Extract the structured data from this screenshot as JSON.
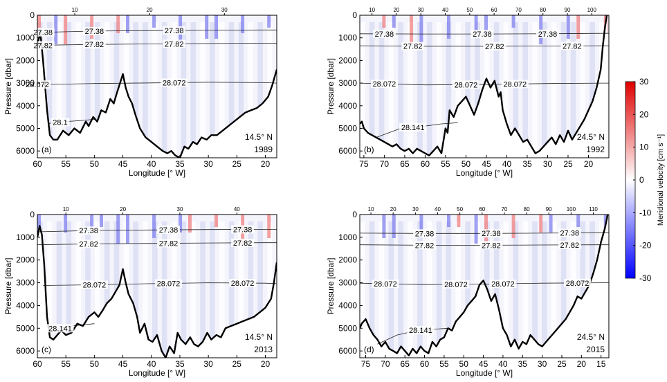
{
  "chart_data": [
    {
      "type": "heatmap",
      "panel": "(a)",
      "latitude": "14.5° N",
      "year": "1989",
      "xlabel": "Longitude [° W]",
      "ylabel": "Pressure [dbar]",
      "xlim": [
        60,
        18
      ],
      "ylim": [
        6300,
        0
      ],
      "xticks": [
        60,
        55,
        50,
        45,
        40,
        35,
        30,
        25,
        20
      ],
      "yticks": [
        0,
        1000,
        2000,
        3000,
        4000,
        5000,
        6000
      ],
      "stations_shown": [
        10,
        20,
        30
      ],
      "isopycnal_labels": [
        "27.38",
        "27.82",
        "28.072",
        "28.1"
      ],
      "isopycnals": [
        {
          "label": "27.38",
          "x": [
            60,
            50,
            40,
            30,
            20,
            18
          ],
          "y": [
            760,
            700,
            680,
            660,
            650,
            650
          ]
        },
        {
          "label": "27.82",
          "x": [
            60,
            50,
            40,
            30,
            20,
            18
          ],
          "y": [
            1330,
            1290,
            1270,
            1250,
            1240,
            1240
          ]
        },
        {
          "label": "28.072",
          "x": [
            59,
            50,
            40,
            30,
            20,
            18
          ],
          "y": [
            3060,
            3020,
            2990,
            2960,
            2980,
            3000
          ]
        },
        {
          "label": "28.1",
          "x": [
            58,
            55,
            52,
            50
          ],
          "y": [
            4780,
            4700,
            4650,
            4600
          ]
        }
      ],
      "bathymetry": {
        "x": [
          60,
          59.5,
          59,
          58.3,
          57.8,
          57.2,
          56.5,
          55.5,
          54.5,
          53.5,
          52.5,
          51.5,
          51,
          50.2,
          49.5,
          48.8,
          48,
          47.2,
          46.6,
          46,
          45.5,
          45,
          44.5,
          44,
          43.4,
          42.8,
          42,
          41,
          40,
          39,
          38,
          37.2,
          36.5,
          35.8,
          35,
          34.2,
          33.5,
          32.7,
          32,
          31.2,
          30.3,
          29.5,
          28.5,
          27.5,
          26.5,
          25.5,
          24.5,
          23.5,
          22.5,
          21.5,
          20.5,
          19.5,
          18.8,
          18
        ],
        "y": [
          1400,
          700,
          2000,
          4200,
          5300,
          5500,
          5500,
          5100,
          5300,
          5000,
          5200,
          4700,
          4900,
          4500,
          4700,
          4200,
          4300,
          3700,
          3900,
          3400,
          3000,
          2600,
          3200,
          3600,
          3900,
          4400,
          5000,
          5400,
          5600,
          5800,
          6000,
          6100,
          6000,
          6200,
          6300,
          5800,
          5900,
          5600,
          5700,
          5400,
          5500,
          5300,
          5300,
          5100,
          4900,
          4700,
          4500,
          4300,
          4200,
          4100,
          3900,
          3600,
          3100,
          2400
        ]
      },
      "colorbar": {
        "label": "Meridional velocity [cm s⁻¹]",
        "min": -30,
        "max": 30,
        "ticks": [
          30,
          20,
          10,
          0,
          -10,
          -20,
          -30
        ]
      }
    },
    {
      "type": "heatmap",
      "panel": "(b)",
      "latitude": "24.5° N",
      "year": "1992",
      "xlabel": "Longitude [° W]",
      "ylabel": "Pressure [dbar]",
      "xlim": [
        76,
        15
      ],
      "ylim": [
        6300,
        0
      ],
      "xticks": [
        75,
        70,
        65,
        60,
        55,
        50,
        45,
        40,
        35,
        30,
        25,
        20
      ],
      "yticks": [
        0,
        1000,
        2000,
        3000,
        4000,
        5000,
        6000
      ],
      "stations_shown": [
        10,
        20,
        30,
        40,
        50,
        60,
        70,
        80,
        90,
        100
      ],
      "isopycnal_labels": [
        "27.38",
        "27.82",
        "28.072",
        "28.141"
      ],
      "isopycnals": [
        {
          "label": "27.38",
          "x": [
            76,
            60,
            45,
            30,
            17,
            15
          ],
          "y": [
            820,
            830,
            830,
            820,
            800,
            800
          ]
        },
        {
          "label": "27.82",
          "x": [
            76,
            60,
            45,
            30,
            17,
            15
          ],
          "y": [
            1350,
            1370,
            1370,
            1360,
            1350,
            1350
          ]
        },
        {
          "label": "28.072",
          "x": [
            76,
            60,
            45,
            30,
            17,
            15
          ],
          "y": [
            3000,
            3080,
            3060,
            3020,
            3000,
            3000
          ]
        },
        {
          "label": "28.141",
          "x": [
            72,
            66,
            60,
            56,
            52
          ],
          "y": [
            5400,
            5000,
            4900,
            4800,
            4750
          ]
        }
      ],
      "bathymetry": {
        "x": [
          76,
          75.5,
          75,
          74,
          73,
          72,
          71,
          70,
          69,
          68,
          67,
          66,
          65,
          64,
          63,
          62,
          61,
          60,
          59,
          58,
          57,
          56,
          55,
          54.5,
          54,
          53,
          52,
          51,
          50,
          49,
          48,
          47,
          46,
          45,
          44,
          43,
          42,
          41.5,
          41,
          40,
          39,
          38,
          37,
          36,
          35,
          34,
          33,
          32,
          31,
          30,
          29,
          28,
          27,
          26,
          25,
          24,
          23,
          22,
          21,
          20,
          19,
          18,
          17,
          16.5,
          16,
          15.5
        ],
        "y": [
          4800,
          4700,
          5000,
          5200,
          5300,
          5400,
          5500,
          5600,
          5700,
          5800,
          5700,
          5900,
          6000,
          5900,
          6100,
          5900,
          6000,
          6100,
          6200,
          6000,
          5800,
          6100,
          5000,
          5200,
          4200,
          4500,
          4000,
          3800,
          3600,
          4000,
          4400,
          3900,
          3300,
          2800,
          3200,
          2900,
          3600,
          3400,
          4200,
          4800,
          5300,
          5000,
          5300,
          5600,
          5500,
          5800,
          6100,
          6000,
          5800,
          5600,
          5400,
          5700,
          5300,
          5600,
          5100,
          5500,
          5200,
          4900,
          4600,
          4200,
          3800,
          3200,
          2400,
          1400,
          600,
          0
        ]
      },
      "colorbar": {
        "label": "Meridional velocity [cm s⁻¹]",
        "min": -30,
        "max": 30,
        "ticks": [
          30,
          20,
          10,
          0,
          -10,
          -20,
          -30
        ]
      }
    },
    {
      "type": "heatmap",
      "panel": "(c)",
      "latitude": "14.5° N",
      "year": "2013",
      "xlabel": "Longitude [° W]",
      "ylabel": "Pressure [dbar]",
      "xlim": [
        60,
        18
      ],
      "ylim": [
        6300,
        0
      ],
      "xticks": [
        60,
        55,
        50,
        45,
        40,
        35,
        30,
        25,
        20
      ],
      "yticks": [
        0,
        1000,
        2000,
        3000,
        4000,
        5000,
        6000
      ],
      "stations_shown": [
        10,
        20,
        30,
        40
      ],
      "isopycnal_labels": [
        "27.38",
        "27.82",
        "28.072",
        "28.141"
      ],
      "isopycnals": [
        {
          "label": "27.38",
          "x": [
            60,
            50,
            40,
            30,
            20,
            18
          ],
          "y": [
            760,
            700,
            680,
            660,
            650,
            650
          ]
        },
        {
          "label": "27.82",
          "x": [
            60,
            50,
            40,
            30,
            20,
            18
          ],
          "y": [
            1330,
            1290,
            1270,
            1250,
            1240,
            1240
          ]
        },
        {
          "label": "28.072",
          "x": [
            59,
            50,
            40,
            30,
            20,
            18
          ],
          "y": [
            3120,
            3090,
            3040,
            3000,
            3020,
            3040
          ]
        },
        {
          "label": "28.141",
          "x": [
            58,
            56,
            54,
            52,
            50
          ],
          "y": [
            5200,
            5000,
            4900,
            4850,
            4800
          ]
        }
      ],
      "bathymetry": {
        "x": [
          60,
          59.6,
          59.2,
          58.8,
          58.3,
          57.8,
          57.2,
          56.5,
          55.8,
          55,
          54,
          53,
          52,
          51,
          50,
          49.3,
          48.5,
          47.8,
          47,
          46.3,
          45.6,
          45,
          44.5,
          44,
          43.2,
          42.5,
          42,
          41.2,
          40.5,
          39.8,
          39,
          38.2,
          37.5,
          36.8,
          36,
          35.4,
          34.8,
          34,
          33.2,
          32.5,
          31.8,
          31,
          30.2,
          29.5,
          28.6,
          27.8,
          27,
          26,
          25,
          24,
          23,
          22,
          21,
          20,
          19,
          18.5,
          18
        ],
        "y": [
          1000,
          500,
          900,
          2200,
          4500,
          5400,
          5500,
          5300,
          5100,
          5300,
          5200,
          4800,
          4900,
          4500,
          4300,
          4500,
          4200,
          3900,
          3700,
          3400,
          3100,
          2400,
          3000,
          3500,
          3900,
          4500,
          5200,
          4800,
          5500,
          5600,
          5300,
          6000,
          6300,
          5800,
          6100,
          5200,
          5500,
          5700,
          5400,
          5700,
          5800,
          5600,
          5200,
          5500,
          5300,
          5400,
          5000,
          4900,
          4800,
          4700,
          4600,
          4500,
          4300,
          4100,
          3700,
          3000,
          2100
        ]
      },
      "colorbar": {
        "label": "Meridional velocity [cm s⁻¹]",
        "min": -30,
        "max": 30,
        "ticks": [
          30,
          20,
          10,
          0,
          -10,
          -20,
          -30
        ]
      }
    },
    {
      "type": "heatmap",
      "panel": "(d)",
      "latitude": "24.5° N",
      "year": "2015",
      "xlabel": "Longitude [° W]",
      "ylabel": "Pressure [dbar]",
      "xlim": [
        76.5,
        13
      ],
      "ylim": [
        6300,
        0
      ],
      "xticks": [
        75,
        70,
        65,
        60,
        55,
        50,
        45,
        40,
        35,
        30,
        25,
        20,
        15
      ],
      "yticks": [
        0,
        1000,
        2000,
        3000,
        4000,
        5000,
        6000
      ],
      "stations_shown": [
        10,
        20,
        30,
        40,
        50,
        60,
        70,
        80,
        90,
        100,
        110
      ],
      "isopycnal_labels": [
        "27.38",
        "27.82",
        "28.072",
        "28.141"
      ],
      "isopycnals": [
        {
          "label": "27.38",
          "x": [
            76.5,
            60,
            45,
            30,
            15,
            13
          ],
          "y": [
            820,
            830,
            830,
            820,
            800,
            800
          ]
        },
        {
          "label": "27.82",
          "x": [
            76.5,
            60,
            45,
            30,
            15,
            13
          ],
          "y": [
            1330,
            1350,
            1350,
            1340,
            1330,
            1330
          ]
        },
        {
          "label": "28.072",
          "x": [
            76.5,
            60,
            45,
            30,
            15,
            13
          ],
          "y": [
            3020,
            3080,
            3060,
            3020,
            3000,
            3000
          ]
        },
        {
          "label": "28.141",
          "x": [
            72,
            67,
            62,
            58,
            54
          ],
          "y": [
            5700,
            5300,
            5100,
            5050,
            5000
          ]
        }
      ],
      "bathymetry": {
        "x": [
          76.5,
          76,
          75,
          74,
          73,
          72,
          71,
          70,
          69,
          68,
          67,
          66,
          65,
          64,
          63,
          62,
          61,
          60,
          59,
          58,
          57,
          56,
          55,
          54,
          53,
          52,
          51,
          50,
          49,
          48,
          47,
          46,
          45,
          44,
          43,
          42,
          41,
          40,
          39,
          38,
          37,
          36,
          35,
          34,
          33,
          32,
          31,
          30,
          29,
          28,
          27,
          26,
          25,
          24,
          23,
          22,
          21,
          20,
          19,
          18,
          17,
          16,
          15,
          14,
          13.3
        ],
        "y": [
          5000,
          4800,
          4600,
          5000,
          5300,
          5500,
          5800,
          5600,
          5900,
          6000,
          6100,
          5800,
          6000,
          6200,
          5900,
          6100,
          5800,
          6000,
          6100,
          5600,
          5800,
          5500,
          5400,
          5000,
          5100,
          4700,
          4500,
          4300,
          4000,
          3800,
          3600,
          3100,
          2900,
          3300,
          3800,
          3500,
          4200,
          5000,
          5300,
          5800,
          5500,
          5900,
          5600,
          5700,
          5300,
          5500,
          5700,
          5800,
          5600,
          5400,
          5200,
          5000,
          4800,
          4600,
          4300,
          4000,
          3600,
          3700,
          3400,
          3100,
          2600,
          2000,
          1200,
          600,
          0
        ]
      },
      "colorbar": {
        "label": "Meridional velocity [cm s⁻¹]",
        "min": -30,
        "max": 30,
        "ticks": [
          30,
          20,
          10,
          0,
          -10,
          -20,
          -30
        ]
      }
    }
  ]
}
